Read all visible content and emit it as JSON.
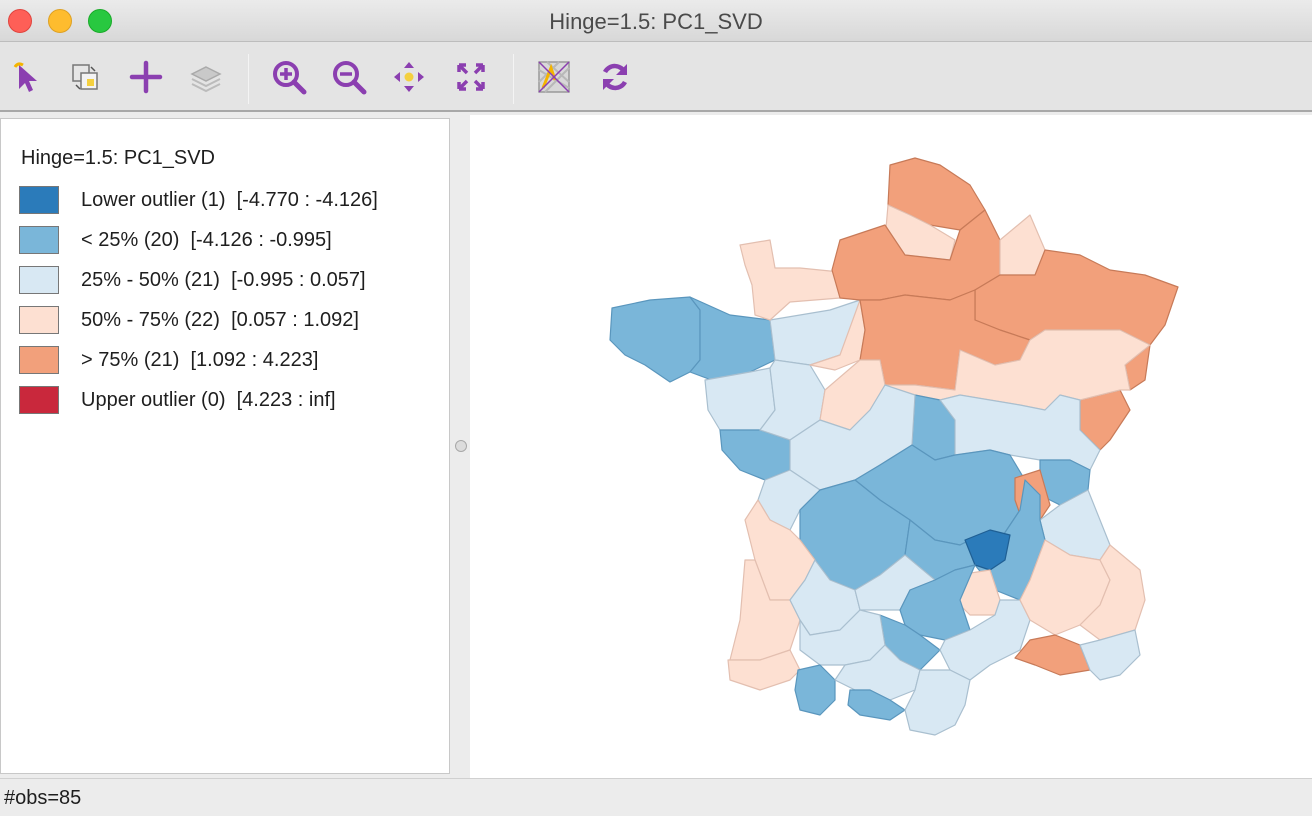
{
  "window": {
    "title": "Hinge=1.5: PC1_SVD"
  },
  "toolbar": {
    "buttons": [
      {
        "name": "select-tool",
        "icon": "pointer-icon"
      },
      {
        "name": "selection-settings",
        "icon": "selection-copy-icon"
      },
      {
        "name": "add-layer",
        "icon": "plus-icon"
      },
      {
        "name": "layers",
        "icon": "layers-icon"
      },
      {
        "name": "zoom-in",
        "icon": "zoom-in-icon"
      },
      {
        "name": "zoom-out",
        "icon": "zoom-out-icon"
      },
      {
        "name": "pan",
        "icon": "pan-icon"
      },
      {
        "name": "fit-extent",
        "icon": "fit-extent-icon"
      },
      {
        "name": "basemap",
        "icon": "basemap-icon"
      },
      {
        "name": "refresh",
        "icon": "refresh-icon"
      }
    ],
    "accent": "#8b3fb0"
  },
  "legend": {
    "title": "Hinge=1.5: PC1_SVD",
    "items": [
      {
        "label": "Lower outlier (1)  [-4.770 : -4.126]",
        "color": "#2b7bba"
      },
      {
        "label": "< 25% (20)  [-4.126 : -0.995]",
        "color": "#7ab6d9"
      },
      {
        "label": "25% - 50% (21)  [-0.995 : 0.057]",
        "color": "#d8e8f3"
      },
      {
        "label": "50% - 75% (22)  [0.057 : 1.092]",
        "color": "#fde0d2"
      },
      {
        "label": "> 75% (21)  [1.092 : 4.223]",
        "color": "#f2a07b"
      },
      {
        "label": "Upper outlier (0)  [4.223 : inf]",
        "color": "#c9283c"
      }
    ]
  },
  "status": {
    "text": "#obs=85"
  }
}
